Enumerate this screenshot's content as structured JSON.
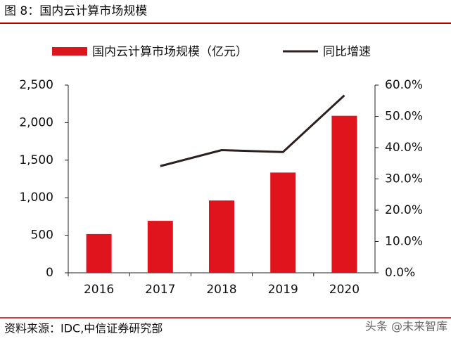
{
  "header": {
    "title": "图 8：国内云计算市场规模"
  },
  "chart_data": {
    "type": "bar-line",
    "categories": [
      "2016",
      "2017",
      "2018",
      "2019",
      "2020"
    ],
    "series": [
      {
        "name": "国内云计算市场规模（亿元）",
        "type": "bar",
        "color": "#e0141c",
        "values": [
          516,
          692,
          963,
          1335,
          2091
        ]
      },
      {
        "name": "同比增速",
        "type": "line",
        "axis": "y2",
        "color": "#2b1f1f",
        "values": [
          null,
          34.1,
          39.2,
          38.6,
          56.7
        ]
      }
    ],
    "ylim": [
      0,
      2500
    ],
    "yticks": [
      0,
      500,
      {
        "value": 1000,
        "label": "1,000"
      },
      {
        "value": 1500,
        "label": "1,500"
      },
      {
        "value": 2000,
        "label": "2,000"
      },
      {
        "value": 2500,
        "label": "2,500"
      }
    ],
    "y2lim": [
      0,
      60
    ],
    "y2ticks": [
      {
        "value": 0,
        "label": "0.0%"
      },
      {
        "value": 10,
        "label": "10.0%"
      },
      {
        "value": 20,
        "label": "20.0%"
      },
      {
        "value": 30,
        "label": "30.0%"
      },
      {
        "value": 40,
        "label": "40.0%"
      },
      {
        "value": 50,
        "label": "50.0%"
      },
      {
        "value": 60,
        "label": "60.0%"
      }
    ],
    "grid": false,
    "legend": "top"
  },
  "footer": {
    "source": "资料来源：IDC,中信证券研究部",
    "watermark": "头条 @未来智库"
  }
}
